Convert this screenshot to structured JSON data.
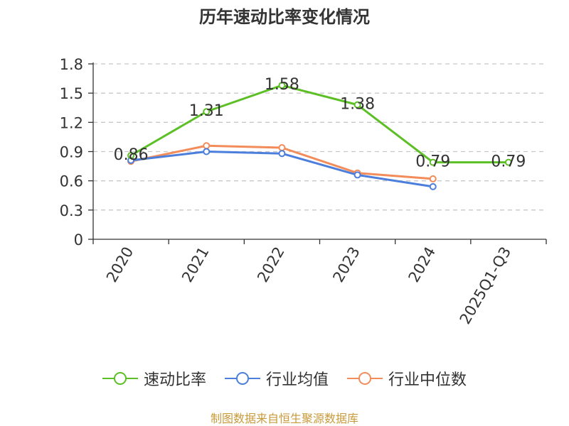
{
  "title": "历年速动比率变化情况",
  "source": "制图数据来自恒生聚源数据库",
  "colors": {
    "series_1": "#5cbf25",
    "series_2": "#4c7fdc",
    "series_3": "#f28c5a",
    "grid": "#c8c8c8",
    "axis": "#333333",
    "source_text": "#c89a3a"
  },
  "chart_data": {
    "type": "line",
    "title": "历年速动比率变化情况",
    "categories": [
      "2020",
      "2021",
      "2022",
      "2023",
      "2024",
      "2025Q1-Q3"
    ],
    "y_ticks": [
      "0",
      "0.3",
      "0.6",
      "0.9",
      "1.2",
      "1.5",
      "1.8"
    ],
    "ylim": [
      0,
      1.8
    ],
    "grid": true,
    "legend_position": "bottom",
    "series": [
      {
        "name": "速动比率",
        "values": [
          0.86,
          1.31,
          1.58,
          1.38,
          0.79,
          0.79
        ],
        "labels": [
          "0.86",
          "1.31",
          "1.58",
          "1.38",
          "0.79",
          "0.79"
        ]
      },
      {
        "name": "行业均值",
        "values": [
          0.81,
          0.9,
          0.88,
          0.66,
          0.54,
          null
        ]
      },
      {
        "name": "行业中位数",
        "values": [
          0.8,
          0.96,
          0.94,
          0.68,
          0.62,
          null
        ]
      }
    ]
  }
}
